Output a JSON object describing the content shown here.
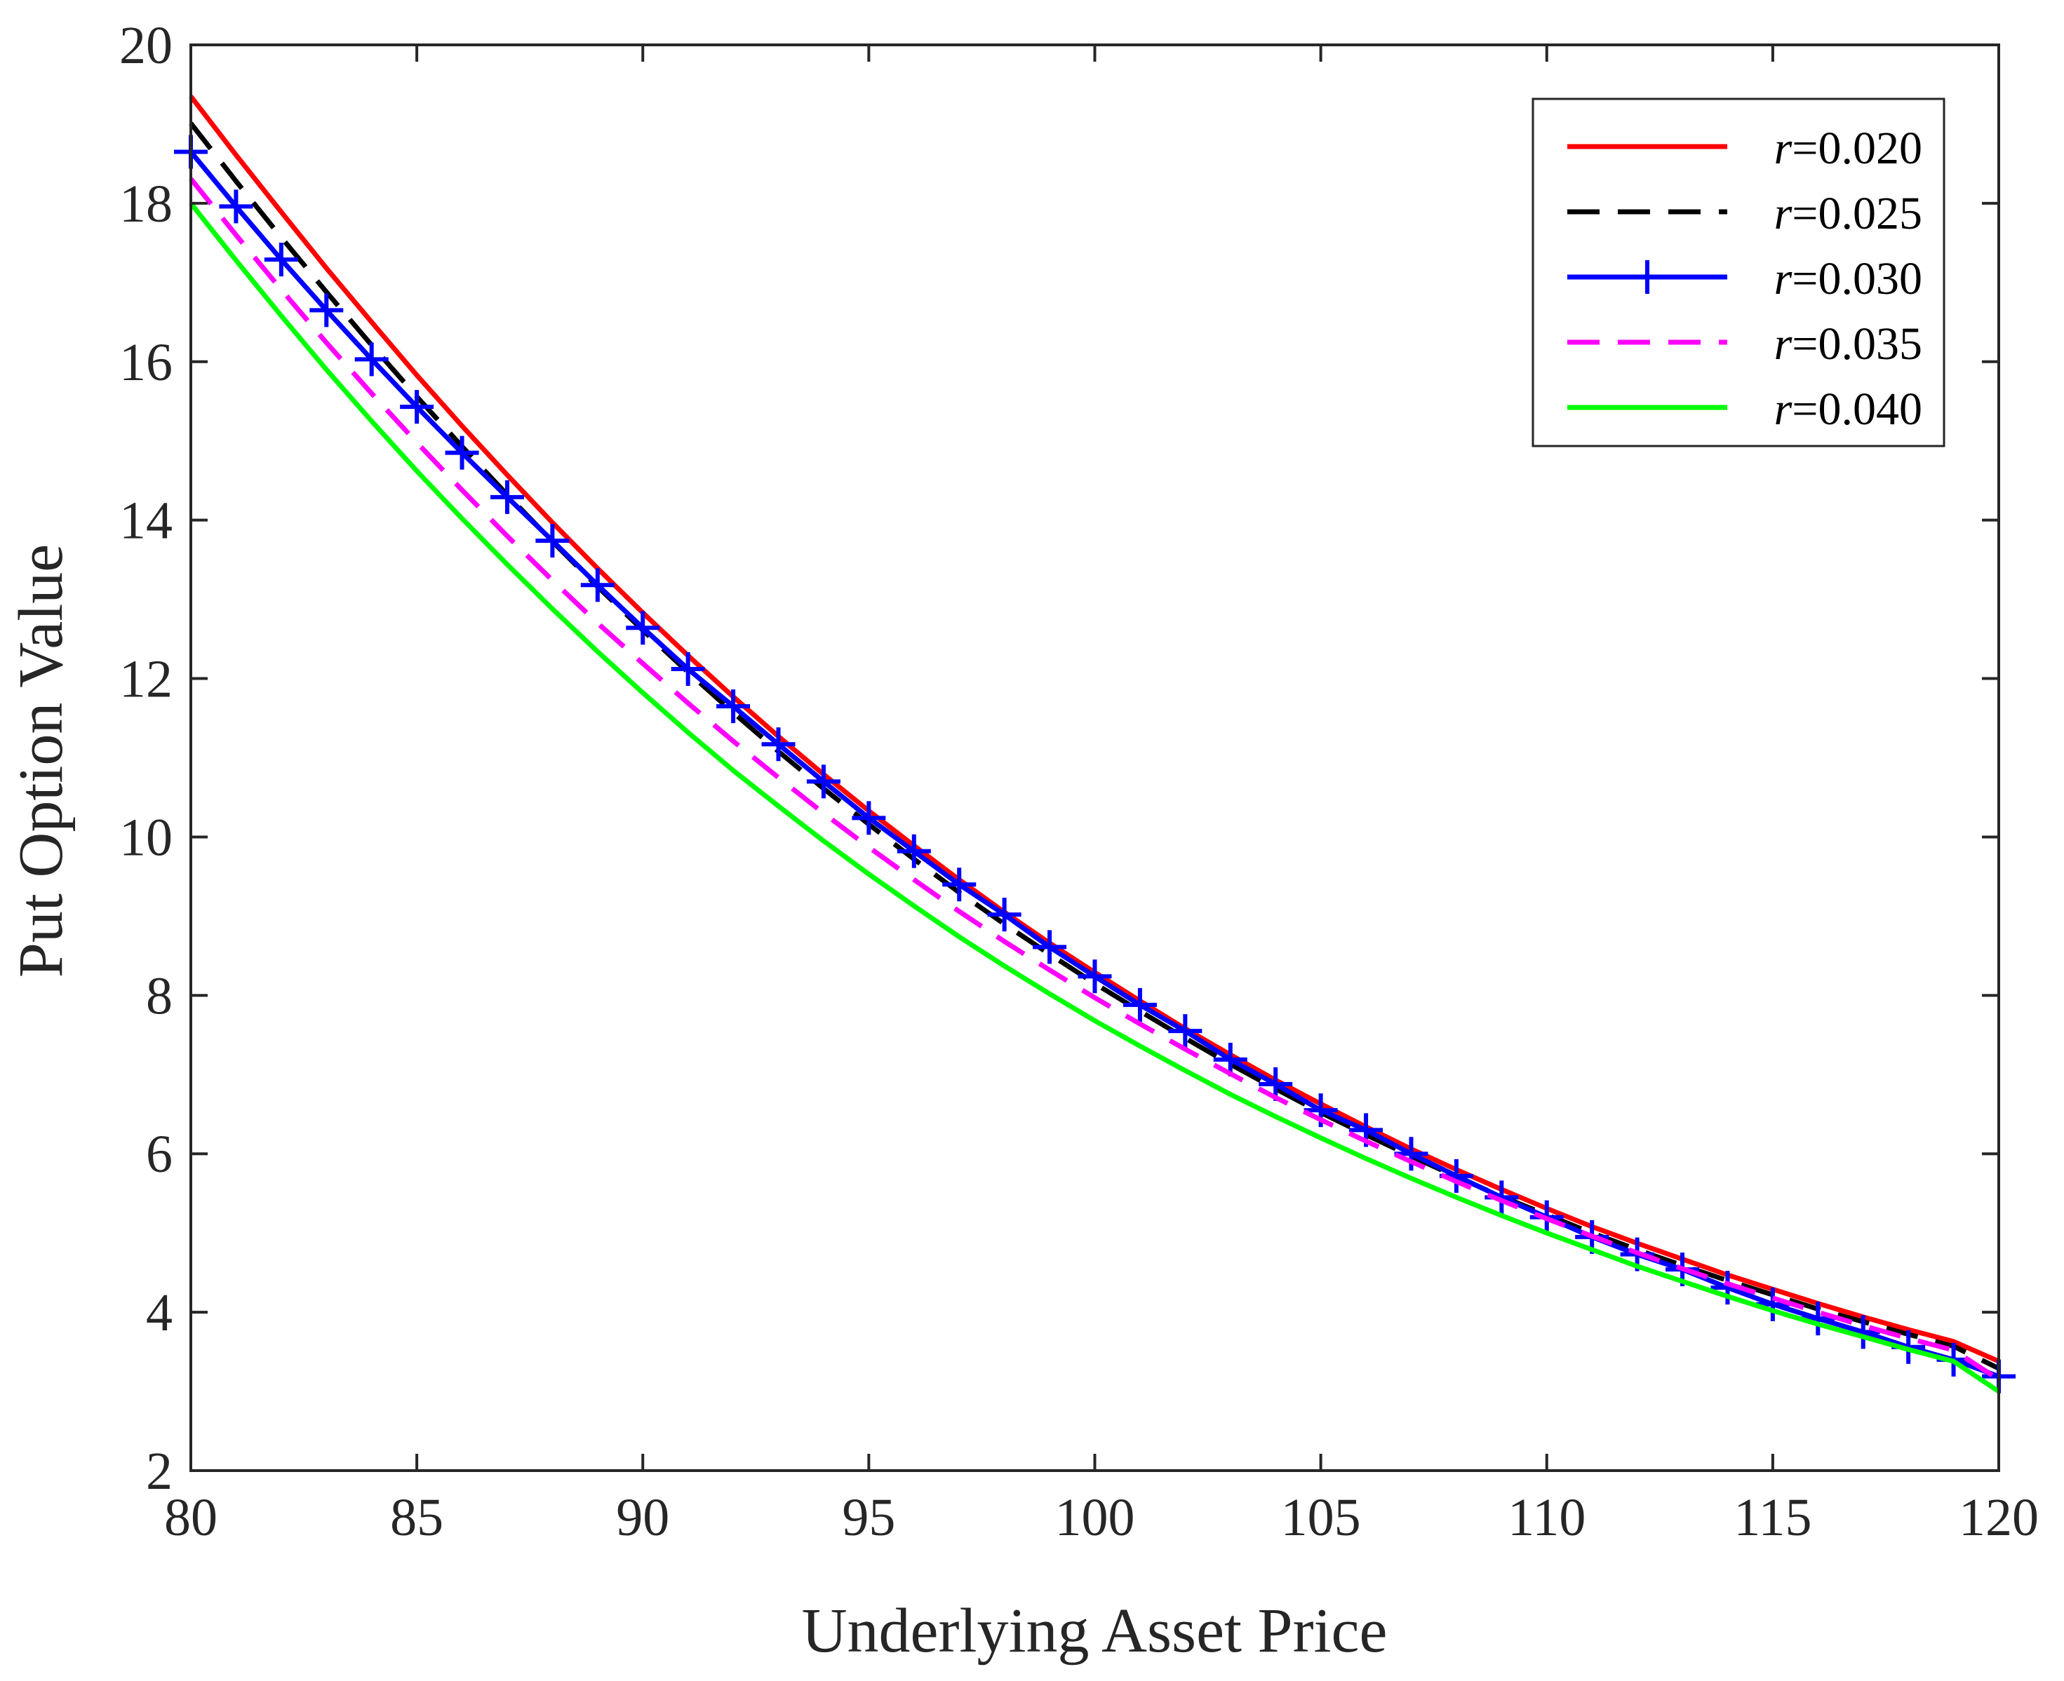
{
  "chart_data": {
    "type": "line",
    "title": "",
    "xlabel": "Underlying Asset Price",
    "ylabel": "Put Option Value",
    "xlim": [
      80,
      120
    ],
    "ylim": [
      2,
      20
    ],
    "xticks": [
      80,
      85,
      90,
      95,
      100,
      105,
      110,
      115,
      120
    ],
    "yticks": [
      2,
      4,
      6,
      8,
      10,
      12,
      14,
      16,
      18,
      20
    ],
    "grid": false,
    "legend_position": "top-right",
    "x": [
      80,
      81,
      82,
      83,
      84,
      85,
      86,
      87,
      88,
      89,
      90,
      91,
      92,
      93,
      94,
      95,
      96,
      97,
      98,
      99,
      100,
      101,
      102,
      103,
      104,
      105,
      106,
      107,
      108,
      109,
      110,
      111,
      112,
      113,
      114,
      115,
      116,
      117,
      118,
      119,
      120
    ],
    "series": [
      {
        "name": "r=0.020",
        "var": "r",
        "value_label": "=0.020",
        "color": "#ff0000",
        "style": "solid",
        "marker": "none",
        "values": [
          19.35,
          18.61,
          17.89,
          17.18,
          16.5,
          15.83,
          15.19,
          14.57,
          13.97,
          13.39,
          12.83,
          12.29,
          11.77,
          11.27,
          10.79,
          10.33,
          9.89,
          9.46,
          9.05,
          8.66,
          8.29,
          7.93,
          7.58,
          7.25,
          6.93,
          6.63,
          6.34,
          6.06,
          5.8,
          5.55,
          5.31,
          5.08,
          4.87,
          4.67,
          4.47,
          4.29,
          4.11,
          3.94,
          3.78,
          3.63,
          3.38
        ]
      },
      {
        "name": "r=0.025",
        "var": "r",
        "value_label": "=0.025",
        "color": "#000000",
        "style": "dashed",
        "marker": "none",
        "values": [
          19.01,
          18.28,
          17.57,
          16.88,
          16.21,
          15.56,
          14.93,
          14.32,
          13.73,
          13.16,
          12.61,
          12.08,
          11.57,
          11.08,
          10.61,
          10.16,
          9.72,
          9.3,
          8.9,
          8.52,
          8.15,
          7.8,
          7.46,
          7.13,
          6.82,
          6.52,
          6.24,
          5.97,
          5.71,
          5.46,
          5.23,
          5.0,
          4.79,
          4.59,
          4.4,
          4.22,
          4.04,
          3.88,
          3.72,
          3.57,
          3.29
        ]
      },
      {
        "name": "r=0.030",
        "var": "r",
        "value_label": "=0.030",
        "color": "#0000ff",
        "style": "solid",
        "marker": "plus",
        "values": [
          18.65,
          17.96,
          17.29,
          16.65,
          16.03,
          15.43,
          14.85,
          14.29,
          13.74,
          13.18,
          12.64,
          12.12,
          11.65,
          11.17,
          10.7,
          10.24,
          9.82,
          9.4,
          9.02,
          8.61,
          8.24,
          7.88,
          7.55,
          7.19,
          6.88,
          6.55,
          6.3,
          6.0,
          5.72,
          5.45,
          5.2,
          4.95,
          4.73,
          4.54,
          4.31,
          4.1,
          3.92,
          3.75,
          3.56,
          3.4,
          3.19
        ]
      },
      {
        "name": "r=0.035",
        "var": "r",
        "value_label": "=0.035",
        "color": "#ff00ff",
        "style": "dashed",
        "marker": "none",
        "values": [
          18.31,
          17.6,
          16.91,
          16.24,
          15.6,
          14.98,
          14.38,
          13.8,
          13.24,
          12.7,
          12.19,
          11.69,
          11.21,
          10.75,
          10.3,
          9.87,
          9.46,
          9.06,
          8.68,
          8.32,
          7.97,
          7.64,
          7.32,
          7.01,
          6.71,
          6.43,
          6.16,
          5.9,
          5.65,
          5.41,
          5.18,
          4.96,
          4.75,
          4.55,
          4.36,
          4.18,
          4.0,
          3.83,
          3.67,
          3.52,
          3.15
        ]
      },
      {
        "name": "r=0.040",
        "var": "r",
        "value_label": "=0.040",
        "color": "#00ff00",
        "style": "solid",
        "marker": "none",
        "values": [
          18.0,
          17.28,
          16.58,
          15.9,
          15.25,
          14.62,
          14.02,
          13.44,
          12.88,
          12.34,
          11.82,
          11.32,
          10.84,
          10.39,
          9.95,
          9.53,
          9.13,
          8.74,
          8.37,
          8.02,
          7.68,
          7.36,
          7.05,
          6.75,
          6.47,
          6.2,
          5.94,
          5.69,
          5.45,
          5.22,
          5.0,
          4.79,
          4.58,
          4.39,
          4.2,
          4.02,
          3.85,
          3.69,
          3.53,
          3.38,
          3.0
        ]
      }
    ]
  }
}
